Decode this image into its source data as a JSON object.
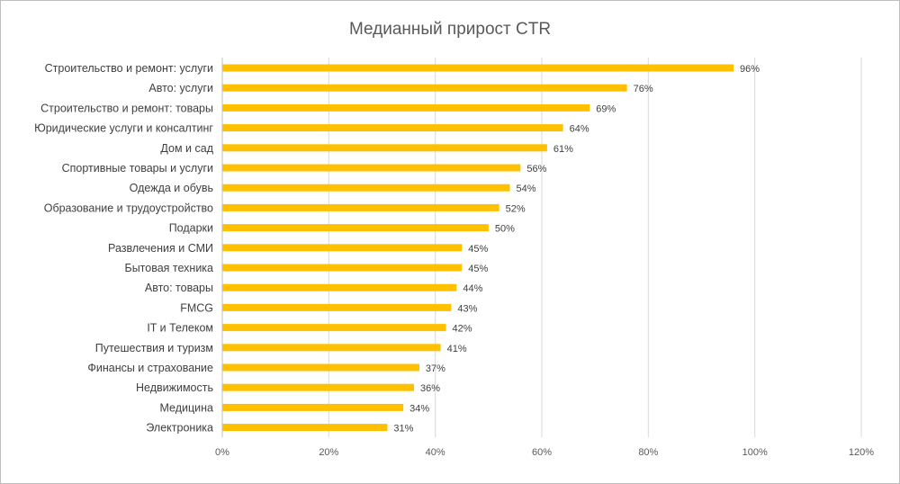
{
  "chart_data": {
    "type": "bar",
    "orientation": "horizontal",
    "title": "Медианный прирост CTR",
    "xlabel": "",
    "ylabel": "",
    "xlim": [
      0,
      120
    ],
    "x_ticks": [
      "0%",
      "20%",
      "40%",
      "60%",
      "80%",
      "100%",
      "120%"
    ],
    "grid": true,
    "legend": "none",
    "bar_color": "#ffc000",
    "categories": [
      "Строительство и ремонт: услуги",
      "Авто: услуги",
      "Строительство и ремонт: товары",
      "Юридические услуги и консалтинг",
      "Дом и сад",
      "Спортивные товары и услуги",
      "Одежда и обувь",
      "Образование и трудоустройство",
      "Подарки",
      "Развлечения и СМИ",
      "Бытовая техника",
      "Авто: товары",
      "FMCG",
      "IT и Телеком",
      "Путешествия и туризм",
      "Финансы и страхование",
      "Недвижимость",
      "Медицина",
      "Электроника"
    ],
    "values": [
      96,
      76,
      69,
      64,
      61,
      56,
      54,
      52,
      50,
      45,
      45,
      44,
      43,
      42,
      41,
      37,
      36,
      34,
      31
    ],
    "value_labels": [
      "96%",
      "76%",
      "69%",
      "64%",
      "61%",
      "56%",
      "54%",
      "52%",
      "50%",
      "45%",
      "45%",
      "44%",
      "43%",
      "42%",
      "41%",
      "37%",
      "36%",
      "34%",
      "31%"
    ]
  }
}
